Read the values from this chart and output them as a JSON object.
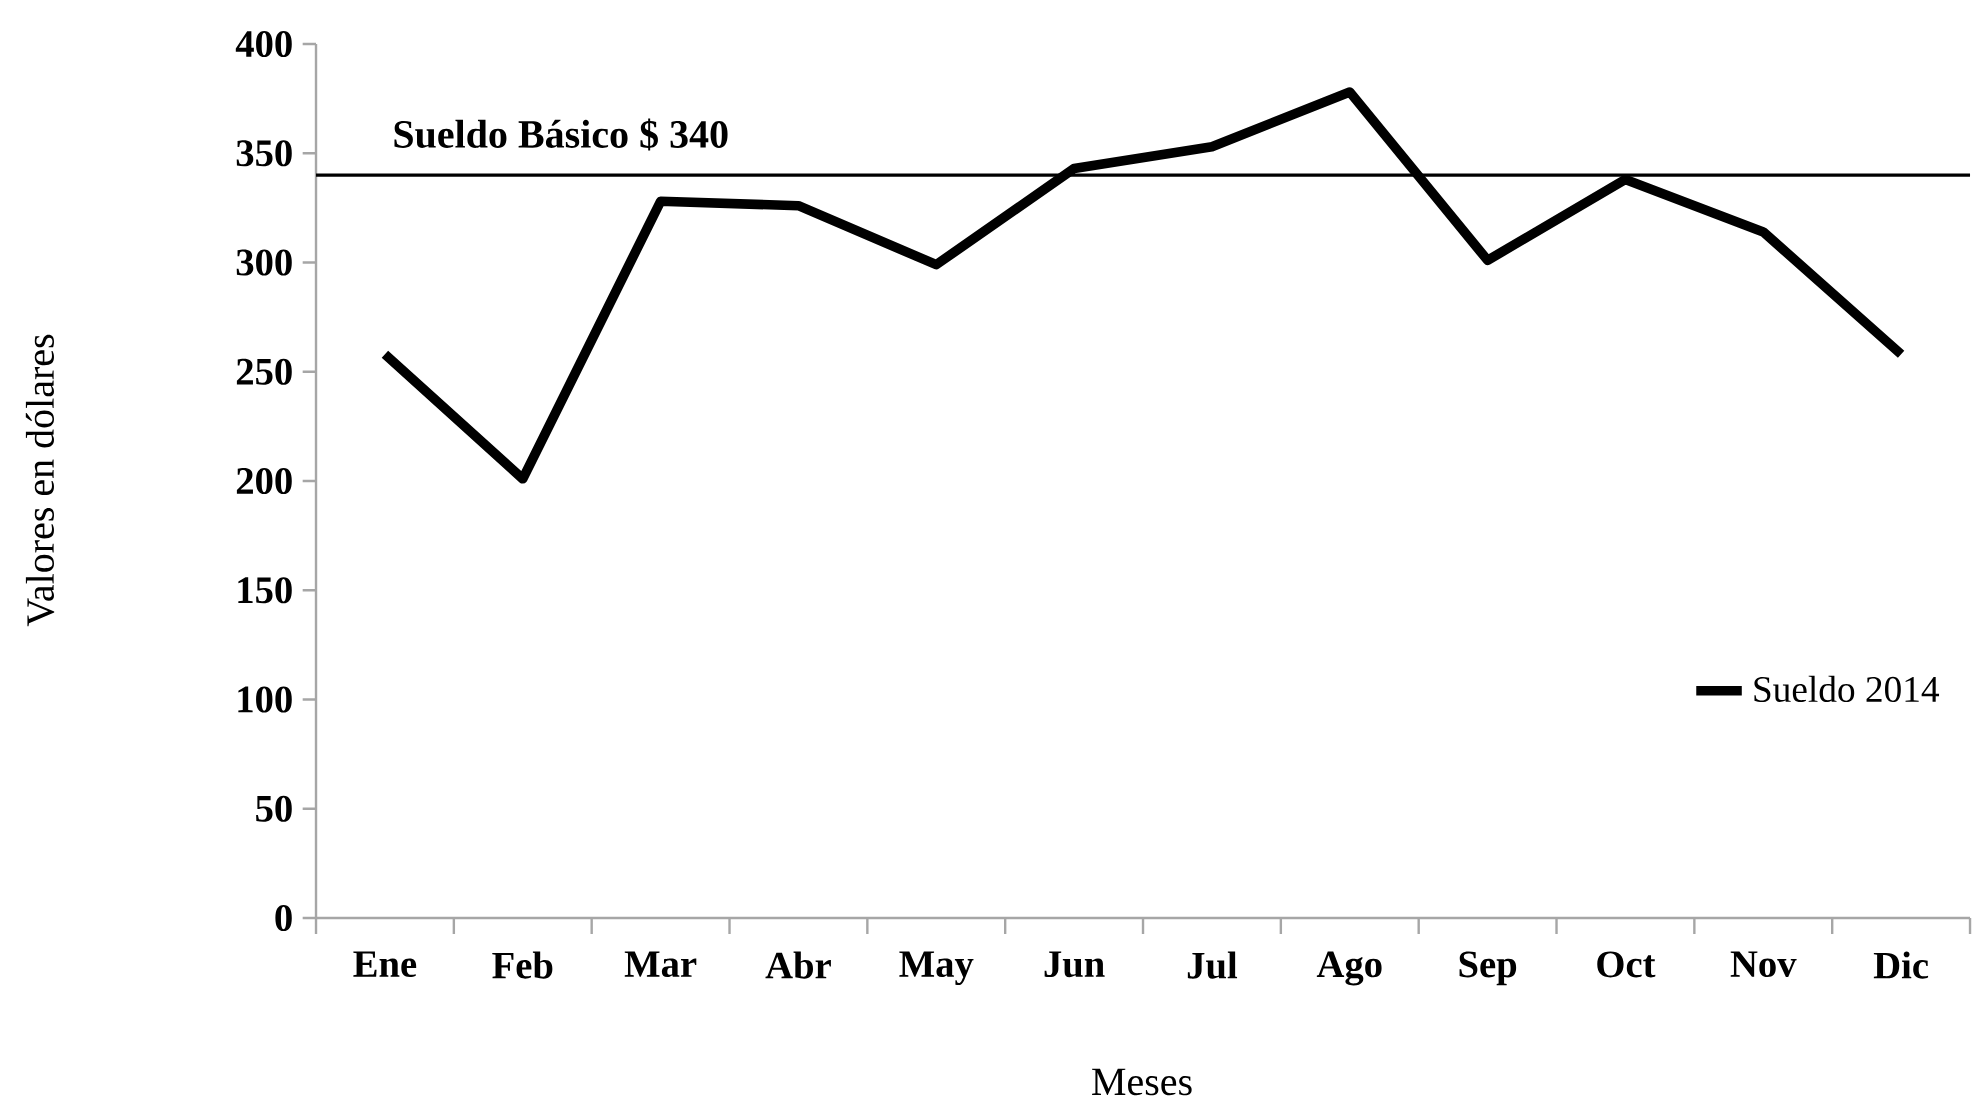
{
  "chart_data": {
    "type": "line",
    "xlabel": "Meses",
    "ylabel": "Valores en dólares",
    "categories": [
      "Ene",
      "Feb",
      "Mar",
      "Abr",
      "May",
      "Jun",
      "Jul",
      "Ago",
      "Sep",
      "Oct",
      "Nov",
      "Dic"
    ],
    "series": [
      {
        "name": "Sueldo 2014",
        "color": "#000000",
        "values": [
          258,
          201,
          328,
          326,
          299,
          343,
          353,
          378,
          301,
          338,
          314,
          258
        ]
      }
    ],
    "ylim": [
      0,
      400
    ],
    "yticks": [
      0,
      50,
      100,
      150,
      200,
      250,
      300,
      350,
      400
    ],
    "ref_lines": [
      {
        "axis": "y",
        "value": 340,
        "label": "Sueldo Básico $ 340",
        "color": "#000000"
      }
    ],
    "legend": "bottom right",
    "grid": false,
    "marker": "none",
    "line_style": "solid"
  }
}
